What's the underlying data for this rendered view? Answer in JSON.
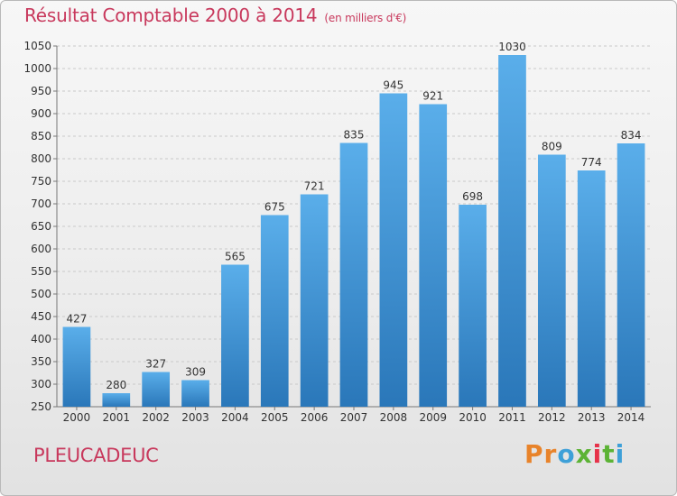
{
  "header": {
    "title": "Résultat Comptable 2000 à 2014",
    "unit": "(en milliers d'€)"
  },
  "footer": {
    "location": "PLEUCADEUC"
  },
  "brand": {
    "letters": [
      "P",
      "r",
      "o",
      "x",
      "i",
      "t",
      "i"
    ],
    "colors": [
      "#e8832a",
      "#e8832a",
      "#3ea0d8",
      "#5cb335",
      "#e6324a",
      "#5cb335",
      "#3ea0d8"
    ]
  },
  "colors": {
    "bar_top": "#5aaeea",
    "bar_bottom": "#2a77b9",
    "title": "#c8385c"
  },
  "chart_data": {
    "type": "bar",
    "title": "Résultat Comptable 2000 à 2014",
    "categories": [
      "2000",
      "2001",
      "2002",
      "2003",
      "2004",
      "2005",
      "2006",
      "2007",
      "2008",
      "2009",
      "2010",
      "2011",
      "2012",
      "2013",
      "2014"
    ],
    "values": [
      427,
      280,
      327,
      309,
      565,
      675,
      721,
      835,
      945,
      921,
      698,
      1030,
      809,
      774,
      834
    ],
    "ylim": [
      250,
      1050
    ],
    "yticks": [
      250,
      300,
      350,
      400,
      450,
      500,
      550,
      600,
      650,
      700,
      750,
      800,
      850,
      900,
      950,
      1000,
      1050
    ],
    "grid": true,
    "data_labels": true
  }
}
